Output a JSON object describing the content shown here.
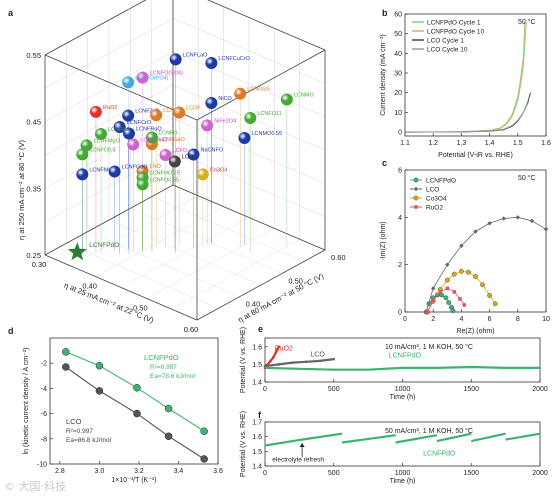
{
  "watermark": "© 大国·科技",
  "panels": {
    "a": "a",
    "b": "b",
    "c": "c",
    "d": "d",
    "e": "e",
    "f": "f"
  },
  "chart_data": [
    {
      "panel": "a",
      "type": "scatter",
      "title": "",
      "xlabel": "η at 25 mA cm⁻² at 22 °C (V)",
      "ylabel": "η at 250 mA cm⁻² at 80 °C (V)",
      "zlabel": "η at 80 mA cm⁻² at 50 °C (V)",
      "x_ticks": [
        "0.30",
        "0.40",
        "0.50",
        "0.60"
      ],
      "y_ticks": [
        "0.25",
        "0.35",
        "0.45",
        "0.55"
      ],
      "z_ticks": [
        "0.40",
        "0.50",
        "0.60"
      ],
      "xlim": [
        0.3,
        0.6
      ],
      "ylim": [
        0.25,
        0.55
      ],
      "zlim": [
        0.3,
        0.6
      ],
      "highlight": {
        "name": "LCNFPdO",
        "x": 0.33,
        "y": 0.25,
        "z": 0.34,
        "color": "#2e7d32"
      },
      "points": [
        {
          "name": "LCNFLaO",
          "x": 0.44,
          "y": 0.54,
          "z": 0.44,
          "color": "#1f3aa8",
          "label_color": "#1f3aa8"
        },
        {
          "name": "LCNFCuCrO",
          "x": 0.46,
          "y": 0.52,
          "z": 0.5,
          "color": "#1f3aa8",
          "label_color": "#1f3aa8"
        },
        {
          "name": "LCNFO(SO4)",
          "x": 0.4,
          "y": 0.51,
          "z": 0.41,
          "color": "#cc66cc",
          "label_color": "#cc44cc"
        },
        {
          "name": "LCNFO(PO4)",
          "x": 0.38,
          "y": 0.5,
          "z": 0.4,
          "color": "#44aadd",
          "label_color": "#44aadd"
        },
        {
          "name": "LCNMO",
          "x": 0.55,
          "y": 0.47,
          "z": 0.57,
          "color": "#44aa33",
          "label_color": "#44aa33"
        },
        {
          "name": "LCNOSS",
          "x": 0.5,
          "y": 0.48,
          "z": 0.52,
          "color": "#e07a22",
          "label_color": "#e07a22"
        },
        {
          "name": "LCNFO11",
          "x": 0.52,
          "y": 0.45,
          "z": 0.52,
          "color": "#44aa33",
          "label_color": "#44aa33"
        },
        {
          "name": "RuO2",
          "x": 0.35,
          "y": 0.46,
          "z": 0.36,
          "color": "#e03030",
          "label_color": "#e03030"
        },
        {
          "name": "LCNFZrO",
          "x": 0.38,
          "y": 0.45,
          "z": 0.4,
          "color": "#1f3aa8",
          "label_color": "#1f3aa8"
        },
        {
          "name": "LCNFCrO",
          "x": 0.38,
          "y": 0.44,
          "z": 0.38,
          "color": "#1f3aa8",
          "label_color": "#1f3aa8"
        },
        {
          "name": "LCNFRuO",
          "x": 0.39,
          "y": 0.43,
          "z": 0.39,
          "color": "#1f3aa8",
          "label_color": "#1f3aa8"
        },
        {
          "name": "LCNFMgO",
          "x": 0.34,
          "y": 0.41,
          "z": 0.35,
          "color": "#44aa33",
          "label_color": "#44aa33"
        },
        {
          "name": "LCNFVO",
          "x": 0.36,
          "y": 0.43,
          "z": 0.36,
          "color": "#44aa33",
          "label_color": "#44aa33"
        },
        {
          "name": "LCNFO0.5",
          "x": 0.34,
          "y": 0.4,
          "z": 0.34,
          "color": "#44aa33",
          "label_color": "#44aa33"
        },
        {
          "name": "LCNPO",
          "x": 0.41,
          "y": 0.45,
          "z": 0.43,
          "color": "#e07a22",
          "label_color": "#e07a22"
        },
        {
          "name": "LCOF",
          "x": 0.43,
          "y": 0.45,
          "z": 0.46,
          "color": "#e07a22",
          "label_color": "#e07a22"
        },
        {
          "name": "NiCO",
          "x": 0.46,
          "y": 0.46,
          "z": 0.5,
          "color": "#1f3aa8",
          "label_color": "#1f3aa8"
        },
        {
          "name": "NiFe2O4",
          "x": 0.46,
          "y": 0.43,
          "z": 0.49,
          "color": "#cc66cc",
          "label_color": "#cc44cc"
        },
        {
          "name": "LCNMO0.55",
          "x": 0.5,
          "y": 0.41,
          "z": 0.53,
          "color": "#1f3aa8",
          "label_color": "#1f3aa8"
        },
        {
          "name": "NaCNFO",
          "x": 0.45,
          "y": 0.39,
          "z": 0.47,
          "color": "#1f3aa8",
          "label_color": "#1f3aa8"
        },
        {
          "name": "LCNFGaO",
          "x": 0.41,
          "y": 0.41,
          "z": 0.42,
          "color": "#e07a22",
          "label_color": "#e07a22"
        },
        {
          "name": "LCNFO",
          "x": 0.41,
          "y": 0.42,
          "z": 0.42,
          "color": "#44aa33",
          "label_color": "#44aa33"
        },
        {
          "name": "LCNFSmO",
          "x": 0.39,
          "y": 0.41,
          "z": 0.4,
          "color": "#cc66cc",
          "label_color": "#cc44cc"
        },
        {
          "name": "LCFO",
          "x": 0.42,
          "y": 0.39,
          "z": 0.44,
          "color": "#cc66cc",
          "label_color": "#cc44cc"
        },
        {
          "name": "LNO",
          "x": 0.4,
          "y": 0.37,
          "z": 0.41,
          "color": "#e07a22",
          "label_color": "#e07a22"
        },
        {
          "name": "LCNFMnO",
          "x": 0.34,
          "y": 0.37,
          "z": 0.34,
          "color": "#1f3aa8",
          "label_color": "#1f3aa8"
        },
        {
          "name": "LCNFGdO",
          "x": 0.37,
          "y": 0.37,
          "z": 0.38,
          "color": "#1f3aa8",
          "label_color": "#1f3aa8"
        },
        {
          "name": "LCNFHO0.5",
          "x": 0.4,
          "y": 0.36,
          "z": 0.41,
          "color": "#44aa33",
          "label_color": "#44aa33"
        },
        {
          "name": "LCNFO0.55",
          "x": 0.4,
          "y": 0.35,
          "z": 0.41,
          "color": "#44aa33",
          "label_color": "#44aa33"
        },
        {
          "name": "LCO",
          "x": 0.43,
          "y": 0.38,
          "z": 0.45,
          "color": "#444444",
          "label_color": "#222222"
        },
        {
          "name": "Co3O4",
          "x": 0.46,
          "y": 0.36,
          "z": 0.48,
          "color": "#d8b020",
          "label_color": "#e03030"
        },
        {
          "name": "LCNFPdO",
          "x": 0.33,
          "y": 0.25,
          "z": 0.34,
          "color": "#2e7d32",
          "label_color": "#2e7d32"
        }
      ]
    },
    {
      "panel": "b",
      "type": "line",
      "title": "",
      "annotation": "50 °C",
      "xlabel": "Potential (V-iR vs. RHE)",
      "ylabel": "Current density (mA cm⁻²)",
      "xlim": [
        1.1,
        1.6
      ],
      "ylim": [
        -2,
        60
      ],
      "x_ticks": [
        "1.1",
        "1.2",
        "1.3",
        "1.4",
        "1.5",
        "1.6"
      ],
      "y_ticks": [
        "0",
        "10",
        "20",
        "30",
        "40",
        "50",
        "60"
      ],
      "legend_position": "top-left",
      "series": [
        {
          "name": "LCNFPdO Cycle 1",
          "color": "#7fcf8a",
          "x": [
            1.1,
            1.3,
            1.4,
            1.44,
            1.46,
            1.48,
            1.5,
            1.51,
            1.52,
            1.53
          ],
          "y": [
            0,
            0.2,
            0.8,
            2,
            4,
            8,
            16,
            24,
            34,
            56
          ]
        },
        {
          "name": "LCNFPdO Cycle 10",
          "color": "#c8b46e",
          "x": [
            1.1,
            1.3,
            1.4,
            1.44,
            1.46,
            1.48,
            1.5,
            1.51,
            1.52,
            1.525
          ],
          "y": [
            0,
            0.2,
            0.9,
            2.2,
            4.5,
            9,
            18,
            27,
            38,
            56
          ]
        },
        {
          "name": "LCO Cycle 1",
          "color": "#444444",
          "x": [
            1.1,
            1.3,
            1.4,
            1.45,
            1.48,
            1.5,
            1.52,
            1.535,
            1.545
          ],
          "y": [
            0,
            0.1,
            0.4,
            1.2,
            3,
            5.5,
            10,
            15,
            20
          ]
        },
        {
          "name": "LCO Cycle 10",
          "color": "#9a9a9a",
          "x": [
            1.1,
            1.3,
            1.4,
            1.45,
            1.48,
            1.5,
            1.52,
            1.53,
            1.54
          ],
          "y": [
            0,
            0.1,
            0.5,
            1.4,
            3.4,
            6,
            10,
            13,
            16
          ]
        }
      ]
    },
    {
      "panel": "c",
      "type": "scatter",
      "title": "",
      "annotation": "50 °C",
      "xlabel": "Re(Z) (ohm)",
      "ylabel": "-Im(Z) (ohm)",
      "xlim": [
        0,
        10
      ],
      "ylim": [
        0,
        6
      ],
      "x_ticks": [
        "0",
        "2",
        "4",
        "6",
        "8",
        "10"
      ],
      "y_ticks": [
        "0",
        "2",
        "4",
        "6"
      ],
      "legend_position": "top-left",
      "series": [
        {
          "name": "LCNFPdO",
          "color": "#3cb371",
          "marker": "circle",
          "x": [
            1.5,
            1.7,
            2.0,
            2.3,
            2.6,
            2.9,
            3.1,
            3.3,
            3.4
          ],
          "y": [
            0,
            0.35,
            0.6,
            0.72,
            0.72,
            0.6,
            0.4,
            0.2,
            0.05
          ]
        },
        {
          "name": "LCO",
          "color": "#666666",
          "marker": "diamond",
          "x": [
            1.5,
            2.0,
            3.0,
            4.0,
            5.0,
            6.0,
            7.0,
            8.0,
            9.0,
            10.0
          ],
          "y": [
            0,
            1.0,
            2.0,
            2.8,
            3.4,
            3.75,
            3.95,
            4.0,
            3.85,
            3.5
          ]
        },
        {
          "name": "Co3O4",
          "color": "#d8a820",
          "marker": "circle",
          "x": [
            1.6,
            2.0,
            2.5,
            3.0,
            3.5,
            4.0,
            4.5,
            5.0,
            5.5,
            6.0,
            6.4
          ],
          "y": [
            0,
            0.45,
            0.95,
            1.35,
            1.6,
            1.72,
            1.68,
            1.5,
            1.15,
            0.7,
            0.35
          ]
        },
        {
          "name": "RuO2",
          "color": "#e0506a",
          "marker": "square",
          "x": [
            1.6,
            2.0,
            2.5,
            3.0,
            3.5,
            3.9,
            4.2
          ],
          "y": [
            0,
            0.5,
            0.85,
            1.0,
            0.85,
            0.55,
            0.3
          ]
        }
      ]
    },
    {
      "panel": "d",
      "type": "scatter",
      "title": "",
      "xlabel": "1×10⁻³/T (K⁻¹)",
      "ylabel": "ln (kinetic current density / A cm⁻²)",
      "xlim": [
        2.75,
        3.6
      ],
      "ylim": [
        -10,
        0
      ],
      "x_ticks": [
        "2.8",
        "3.0",
        "3.2",
        "3.4",
        "3.6"
      ],
      "y_ticks": [
        "-10",
        "-8",
        "-6",
        "-4",
        "-2"
      ],
      "series": [
        {
          "name": "LCNFPdO",
          "color": "#3cb371",
          "x": [
            2.83,
            3.0,
            3.19,
            3.35,
            3.53
          ],
          "y": [
            -1.1,
            -2.2,
            -3.95,
            -5.6,
            -7.4
          ]
        },
        {
          "name": "LCO",
          "color": "#555555",
          "x": [
            2.83,
            3.0,
            3.19,
            3.35,
            3.53
          ],
          "y": [
            -2.3,
            -4.2,
            -6.0,
            -7.8,
            -9.6
          ]
        }
      ],
      "annotations": {
        "lcnfpdo": {
          "name": "LCNFPdO",
          "r2": "R²=0.997",
          "ea": "Ea=78.6 kJ/mol"
        },
        "lco": {
          "name": "LCO",
          "r2": "R²=0.997",
          "ea": "Ea=86.8 kJ/mol"
        }
      }
    },
    {
      "panel": "e",
      "type": "line",
      "title": "",
      "annotation": "10 mA/cm², 1 M KOH, 50 °C",
      "xlabel": "Time (h)",
      "ylabel": "Potential (V vs. RHE)",
      "xlim": [
        0,
        2000
      ],
      "ylim": [
        1.4,
        1.65
      ],
      "x_ticks": [
        "0",
        "500",
        "1000",
        "1500",
        "2000"
      ],
      "y_ticks": [
        "1.4",
        "1.5",
        "1.6"
      ],
      "series": [
        {
          "name": "RuO2",
          "color": "#e03030",
          "x": [
            0,
            20,
            40,
            60,
            80,
            100
          ],
          "y": [
            1.48,
            1.5,
            1.52,
            1.54,
            1.57,
            1.6
          ]
        },
        {
          "name": "LCO",
          "color": "#666666",
          "x": [
            0,
            100,
            200,
            300,
            400,
            500
          ],
          "y": [
            1.49,
            1.5,
            1.51,
            1.515,
            1.52,
            1.53
          ]
        },
        {
          "name": "LCNFPdO",
          "color": "#3cb371",
          "x": [
            0,
            250,
            500,
            750,
            1000,
            1250,
            1500,
            1750,
            2000
          ],
          "y": [
            1.48,
            1.475,
            1.47,
            1.47,
            1.48,
            1.48,
            1.485,
            1.48,
            1.48
          ]
        }
      ]
    },
    {
      "panel": "f",
      "type": "line",
      "title": "",
      "annotation": "50 mA/cm², 1 M KOH, 50 °C",
      "xlabel": "Time (h)",
      "ylabel": "Potential (V vs. RHE)",
      "xlim": [
        0,
        2000
      ],
      "ylim": [
        1.4,
        1.7
      ],
      "x_ticks": [
        "0",
        "500",
        "1000",
        "1500",
        "2000"
      ],
      "y_ticks": [
        "1.4",
        "1.5",
        "1.6",
        "1.7"
      ],
      "arrow_label": "electrolyte refresh",
      "arrow_at_h": 270,
      "series": [
        {
          "name": "LCNFPdO",
          "color": "#3cb371",
          "segments": [
            {
              "x": [
                0,
                270
              ],
              "y": [
                1.54,
                1.58
              ]
            },
            {
              "x": [
                270,
                560
              ],
              "y": [
                1.58,
                1.62
              ]
            },
            {
              "x": [
                560,
                950
              ],
              "y": [
                1.56,
                1.61
              ]
            },
            {
              "x": [
                950,
                1250
              ],
              "y": [
                1.56,
                1.61
              ]
            },
            {
              "x": [
                1250,
                1500
              ],
              "y": [
                1.57,
                1.62
              ]
            },
            {
              "x": [
                1500,
                1750
              ],
              "y": [
                1.57,
                1.62
              ]
            },
            {
              "x": [
                1750,
                2000
              ],
              "y": [
                1.58,
                1.62
              ]
            }
          ]
        }
      ]
    }
  ]
}
